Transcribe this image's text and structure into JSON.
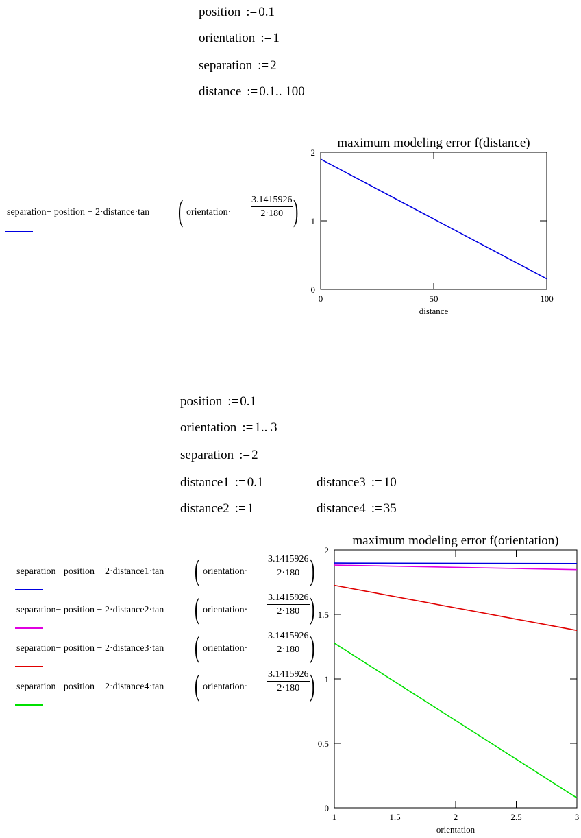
{
  "section1": {
    "defs": [
      {
        "name": "position",
        "op": ":=",
        "value": "0.1"
      },
      {
        "name": "orientation",
        "op": ":=",
        "value": "1"
      },
      {
        "name": "separation",
        "op": ":=",
        "value": "2"
      },
      {
        "name": "distance",
        "op": ":=",
        "value": "0.1.. 100"
      }
    ],
    "expression": {
      "lhs": "separation− position − 2·distance·tan",
      "inner": "orientation·",
      "numerator": "3.1415926",
      "denominator": "2·180"
    },
    "legend_color": "#0000e0"
  },
  "section2": {
    "defs_left": [
      {
        "name": "position",
        "op": ":=",
        "value": "0.1"
      },
      {
        "name": "orientation",
        "op": ":=",
        "value": "1.. 3"
      },
      {
        "name": "separation",
        "op": ":=",
        "value": "2"
      },
      {
        "name": "distance1",
        "op": ":=",
        "value": "0.1"
      },
      {
        "name": "distance2",
        "op": ":=",
        "value": "1"
      }
    ],
    "defs_right": [
      {
        "name": "distance3",
        "op": ":=",
        "value": "10"
      },
      {
        "name": "distance4",
        "op": ":=",
        "value": "35"
      }
    ],
    "expressions": [
      {
        "lhs": "separation− position − 2·distance1·tan",
        "inner": "orientation·",
        "numerator": "3.1415926",
        "denominator": "2·180",
        "color": "#0000e0"
      },
      {
        "lhs": "separation− position − 2·distance2·tan",
        "inner": "orientation·",
        "numerator": "3.1415926",
        "denominator": "2·180",
        "color": "#e000e0"
      },
      {
        "lhs": "separation− position − 2·distance3·tan",
        "inner": "orientation·",
        "numerator": "3.1415926",
        "denominator": "2·180",
        "color": "#e00000"
      },
      {
        "lhs": "separation− position − 2·distance4·tan",
        "inner": "orientation·",
        "numerator": "3.1415926",
        "denominator": "2·180",
        "color": "#00e000"
      }
    ]
  },
  "chart_data": [
    {
      "type": "line",
      "title": "maximum modeling error f(distance)",
      "xlabel": "distance",
      "ylabel": "",
      "xlim": [
        0,
        100
      ],
      "ylim": [
        0,
        2
      ],
      "xticks": [
        0,
        50,
        100
      ],
      "yticks": [
        0,
        1,
        2
      ],
      "grid": false,
      "series": [
        {
          "color": "#0000e0",
          "x": [
            0.1,
            100
          ],
          "y": [
            1.8983,
            0.1545
          ]
        }
      ]
    },
    {
      "type": "line",
      "title": "maximum modeling error f(orientation)",
      "xlabel": "orientation",
      "ylabel": "",
      "xlim": [
        1,
        3
      ],
      "ylim": [
        0,
        2
      ],
      "xticks": [
        1,
        1.5,
        2,
        2.5,
        3
      ],
      "yticks": [
        0,
        0.5,
        1,
        1.5,
        2
      ],
      "grid": false,
      "series": [
        {
          "color": "#0000e0",
          "x": [
            1,
            3
          ],
          "y": [
            1.8983,
            1.8948
          ]
        },
        {
          "color": "#e000e0",
          "x": [
            1,
            3
          ],
          "y": [
            1.8825,
            1.8476
          ]
        },
        {
          "color": "#e00000",
          "x": [
            1,
            3
          ],
          "y": [
            1.7255,
            1.3759
          ]
        },
        {
          "color": "#00e000",
          "x": [
            1,
            3
          ],
          "y": [
            1.2778,
            0.0766
          ]
        }
      ]
    }
  ]
}
